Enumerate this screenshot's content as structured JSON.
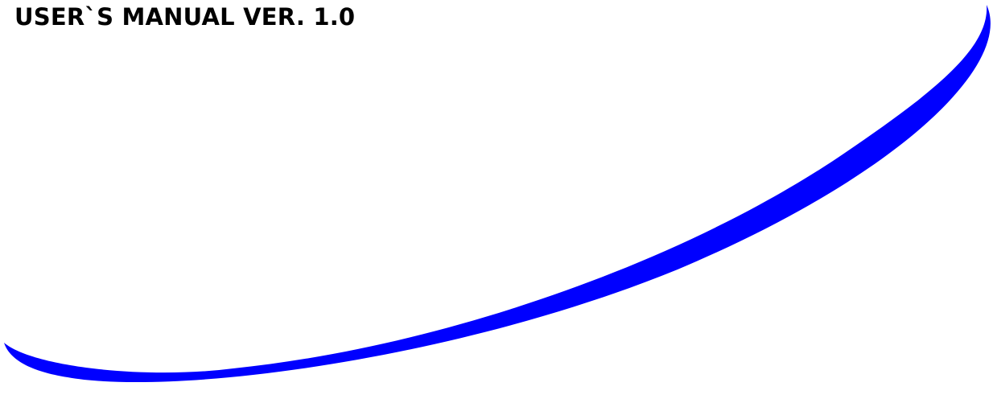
{
  "document": {
    "title": "USER`S MANUAL VER. 1.0"
  },
  "decoration": {
    "swoosh_color": "#0000ff"
  }
}
